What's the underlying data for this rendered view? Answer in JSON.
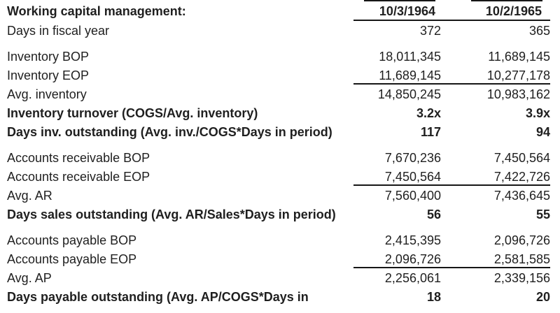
{
  "header": {
    "title": "Working capital management:",
    "col1": "10/3/1964",
    "col2": "10/2/1965"
  },
  "rows": {
    "days_fiscal_year": {
      "label": "Days in fiscal year",
      "y1964": "372",
      "y1965": "365"
    },
    "inventory_bop": {
      "label": "Inventory BOP",
      "y1964": "18,011,345",
      "y1965": "11,689,145"
    },
    "inventory_eop": {
      "label": "Inventory EOP",
      "y1964": "11,689,145",
      "y1965": "10,277,178"
    },
    "avg_inventory": {
      "label": "Avg. inventory",
      "y1964": "14,850,245",
      "y1965": "10,983,162"
    },
    "inventory_turnover": {
      "label": "Inventory turnover (COGS/Avg. inventory)",
      "y1964": "3.2x",
      "y1965": "3.9x"
    },
    "days_inv_outstanding": {
      "label": "Days inv. outstanding (Avg. inv./COGS*Days in period)",
      "y1964": "117",
      "y1965": "94"
    },
    "ar_bop": {
      "label": "Accounts receivable BOP",
      "y1964": "7,670,236",
      "y1965": "7,450,564"
    },
    "ar_eop": {
      "label": "Accounts receivable EOP",
      "y1964": "7,450,564",
      "y1965": "7,422,726"
    },
    "avg_ar": {
      "label": "Avg. AR",
      "y1964": "7,560,400",
      "y1965": "7,436,645"
    },
    "days_sales_outstanding": {
      "label": "Days sales outstanding (Avg. AR/Sales*Days in period)",
      "y1964": "56",
      "y1965": "55"
    },
    "ap_bop": {
      "label": "Accounts payable BOP",
      "y1964": "2,415,395",
      "y1965": "2,096,726"
    },
    "ap_eop": {
      "label": "Accounts payable EOP",
      "y1964": "2,096,726",
      "y1965": "2,581,585"
    },
    "avg_ap": {
      "label": "Avg. AP",
      "y1964": "2,256,061",
      "y1965": "2,339,156"
    },
    "days_payable_outstanding": {
      "label": "Days payable outstanding (Avg. AP/COGS*Days in",
      "y1964": "18",
      "y1965": "20"
    }
  },
  "colors": {
    "text": "#1f1f1f",
    "rule": "#161616",
    "background": "#ffffff"
  }
}
